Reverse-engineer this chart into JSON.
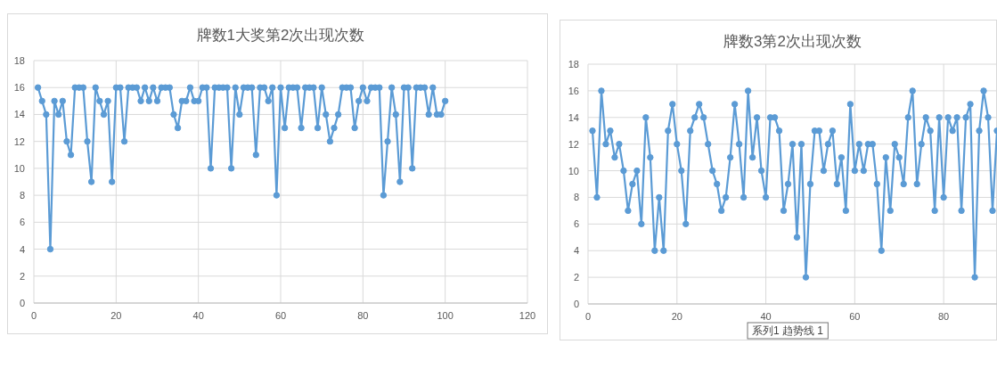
{
  "chart_data": [
    {
      "type": "line",
      "title": "牌数1大奖第2次出现次数",
      "x": [
        1,
        2,
        3,
        4,
        5,
        6,
        7,
        8,
        9,
        10,
        11,
        12,
        13,
        14,
        15,
        16,
        17,
        18,
        19,
        20,
        21,
        22,
        23,
        24,
        25,
        26,
        27,
        28,
        29,
        30,
        31,
        32,
        33,
        34,
        35,
        36,
        37,
        38,
        39,
        40,
        41,
        42,
        43,
        44,
        45,
        46,
        47,
        48,
        49,
        50,
        51,
        52,
        53,
        54,
        55,
        56,
        57,
        58,
        59,
        60,
        61,
        62,
        63,
        64,
        65,
        66,
        67,
        68,
        69,
        70,
        71,
        72,
        73,
        74,
        75,
        76,
        77,
        78,
        79,
        80,
        81,
        82,
        83,
        84,
        85,
        86,
        87,
        88,
        89,
        90,
        91,
        92,
        93,
        94,
        95,
        96,
        97,
        98,
        99,
        100
      ],
      "series": [
        {
          "color": "#5b9bd5",
          "values": [
            16,
            15,
            14,
            4,
            15,
            14,
            15,
            12,
            11,
            16,
            16,
            16,
            12,
            9,
            16,
            15,
            14,
            15,
            9,
            16,
            16,
            12,
            16,
            16,
            16,
            15,
            16,
            15,
            16,
            15,
            16,
            16,
            16,
            14,
            13,
            15,
            15,
            16,
            15,
            15,
            16,
            16,
            10,
            16,
            16,
            16,
            16,
            10,
            16,
            14,
            16,
            16,
            16,
            11,
            16,
            16,
            15,
            16,
            8,
            16,
            13,
            16,
            16,
            16,
            13,
            16,
            16,
            16,
            13,
            16,
            14,
            12,
            13,
            14,
            16,
            16,
            16,
            13,
            15,
            16,
            15,
            16,
            16,
            16,
            8,
            12,
            16,
            14,
            9,
            16,
            16,
            10,
            16,
            16,
            16,
            14,
            16,
            14,
            14,
            15
          ]
        }
      ],
      "xlim": [
        0,
        120
      ],
      "xticks": [
        0,
        20,
        40,
        60,
        80,
        100,
        120
      ],
      "ylim": [
        0,
        18
      ],
      "yticks": [
        0,
        2,
        4,
        6,
        8,
        10,
        12,
        14,
        16,
        18
      ],
      "grid": true,
      "marker": "circle",
      "line_style": "solid"
    },
    {
      "type": "line",
      "title": "牌数3第2次出现次数",
      "x": [
        1,
        2,
        3,
        4,
        5,
        6,
        7,
        8,
        9,
        10,
        11,
        12,
        13,
        14,
        15,
        16,
        17,
        18,
        19,
        20,
        21,
        22,
        23,
        24,
        25,
        26,
        27,
        28,
        29,
        30,
        31,
        32,
        33,
        34,
        35,
        36,
        37,
        38,
        39,
        40,
        41,
        42,
        43,
        44,
        45,
        46,
        47,
        48,
        49,
        50,
        51,
        52,
        53,
        54,
        55,
        56,
        57,
        58,
        59,
        60,
        61,
        62,
        63,
        64,
        65,
        66,
        67,
        68,
        69,
        70,
        71,
        72,
        73,
        74,
        75,
        76,
        77,
        78,
        79,
        80,
        81,
        82,
        83,
        84,
        85,
        86,
        87,
        88,
        89,
        90,
        91,
        92
      ],
      "series": [
        {
          "color": "#5b9bd5",
          "values": [
            13,
            8,
            16,
            12,
            13,
            11,
            12,
            10,
            7,
            9,
            10,
            6,
            14,
            11,
            4,
            8,
            4,
            13,
            15,
            12,
            10,
            6,
            13,
            14,
            15,
            14,
            12,
            10,
            9,
            7,
            8,
            11,
            15,
            12,
            8,
            16,
            11,
            14,
            10,
            8,
            14,
            14,
            13,
            7,
            9,
            12,
            5,
            12,
            2,
            9,
            13,
            13,
            10,
            12,
            13,
            9,
            11,
            7,
            15,
            10,
            12,
            10,
            12,
            12,
            9,
            4,
            11,
            7,
            12,
            11,
            9,
            14,
            16,
            9,
            12,
            14,
            13,
            7,
            14,
            8,
            14,
            13,
            14,
            7,
            14,
            15,
            2,
            13,
            16,
            14,
            7,
            13
          ]
        }
      ],
      "xlim": [
        0,
        92
      ],
      "xticks": [
        0,
        20,
        40,
        60,
        80
      ],
      "ylim": [
        0,
        18
      ],
      "yticks": [
        0,
        2,
        4,
        6,
        8,
        10,
        12,
        14,
        16,
        18
      ],
      "grid": true,
      "marker": "circle",
      "line_style": "solid",
      "annotations": [
        "系列1 趋势线 1"
      ]
    }
  ]
}
